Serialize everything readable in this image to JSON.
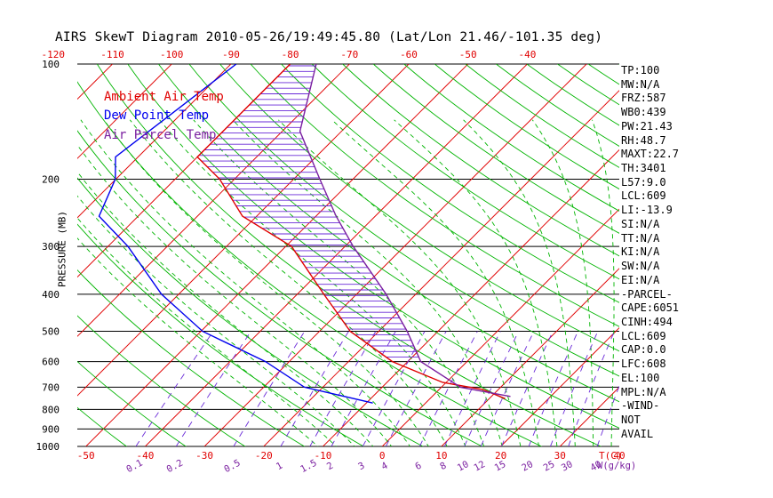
{
  "chart_data": {
    "type": "line",
    "title": "AIRS SkewT Diagram 2010-05-26/19:49:45.80 (Lat/Lon 21.46/-101.35 deg)",
    "ylabel": "PRESSURE (MB)",
    "xlabel_bottom": "T(C)",
    "xlabel_mixing": "W(g/kg)",
    "y_scale": "log",
    "y_range": [
      1000,
      100
    ],
    "pressure_ticks": [
      100,
      200,
      300,
      400,
      500,
      600,
      700,
      800,
      900,
      1000
    ],
    "bottom_temp_ticks": [
      -50,
      -40,
      -30,
      -20,
      -10,
      0,
      10,
      20,
      30,
      40
    ],
    "top_temp_ticks": [
      -120,
      -110,
      -100,
      -90,
      -80,
      -70,
      -60,
      -50,
      -40
    ],
    "mixing_ratio_ticks": [
      "0.1",
      "0.2",
      "0.5",
      "1",
      "1.5",
      "2",
      "3",
      "4",
      "6",
      "8",
      "10",
      "12",
      "15",
      "20",
      "25",
      "30",
      "40"
    ],
    "grid": true,
    "legend_position": "top-left",
    "series": [
      {
        "name": "Ambient Air Temp",
        "color": "#e00000",
        "pressure": [
          100,
          175,
          200,
          250,
          300,
          400,
          500,
          600,
          680,
          710,
          750
        ],
        "temperature": [
          -80.0,
          -80.0,
          -72.5,
          -62.4,
          -49.0,
          -35.5,
          -24.8,
          -12.6,
          -0.6,
          7.4,
          12.7
        ]
      },
      {
        "name": "Dew Point Temp",
        "color": "#0000ee",
        "pressure": [
          100,
          175,
          200,
          250,
          300,
          400,
          500,
          600,
          700,
          770
        ],
        "temperature": [
          -89.1,
          -93.8,
          -90.1,
          -86.6,
          -76.6,
          -62.9,
          -49.7,
          -34.0,
          -23.1,
          -8.9
        ]
      },
      {
        "name": "Air Parcel Temp",
        "color": "#7a1fa0",
        "pressure": [
          100,
          150,
          200,
          250,
          300,
          400,
          500,
          600,
          700,
          740
        ],
        "temperature": [
          -75.6,
          -67.0,
          -55.6,
          -46.6,
          -38.6,
          -25.0,
          -15.2,
          -7.8,
          3.2,
          13.2
        ]
      }
    ],
    "parcel_hatch_range_mb": [
      100,
      600
    ]
  },
  "stats": [
    "TP:100",
    "MW:N/A",
    "FRZ:587",
    "WB0:439",
    "PW:21.43",
    "RH:48.7",
    "MAXT:22.7",
    "TH:3401",
    "L57:9.0",
    "LCL:609",
    "LI:-13.9",
    "SI:N/A",
    "TT:N/A",
    "KI:N/A",
    "SW:N/A",
    "EI:N/A",
    "-PARCEL-",
    "CAPE:6051",
    "CINH:494",
    "LCL:609",
    "CAP:0.0",
    "LFC:608",
    "EL:100",
    "MPL:N/A",
    "-WIND-",
    " NOT",
    " AVAIL"
  ],
  "colors": {
    "isotherm": "#e00000",
    "dry_adiabat": "#00b400",
    "moist_adiabat": "#00b400",
    "mixing_ratio": "#6a2ad8",
    "top_axis_labels": "#e00000",
    "bottom_axis_labels": "#e00000",
    "mixing_labels": "#7a1fa0"
  }
}
